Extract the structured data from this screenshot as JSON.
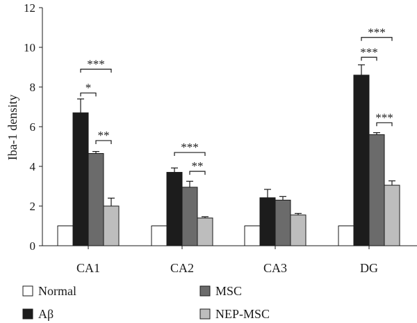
{
  "chart_data": {
    "type": "bar",
    "title": "",
    "xlabel": "",
    "ylabel": "Iba-1 density",
    "ylim": [
      0,
      12
    ],
    "yticks": [
      "0",
      "2",
      "4",
      "6",
      "8",
      "10",
      "12"
    ],
    "categories": [
      "CA1",
      "CA2",
      "CA3",
      "DG"
    ],
    "series": [
      {
        "name": "Normal",
        "color": "#ffffff",
        "values": [
          1.0,
          1.0,
          1.0,
          1.0
        ],
        "errors": [
          0.03,
          0.03,
          0.02,
          0.02
        ]
      },
      {
        "name": "Aβ",
        "color": "#1c1c1c",
        "values": [
          6.7,
          3.7,
          2.42,
          8.6
        ],
        "errors": [
          0.7,
          0.22,
          0.42,
          0.52
        ]
      },
      {
        "name": "MSC",
        "color": "#6b6b6b",
        "values": [
          4.65,
          2.95,
          2.3,
          5.6
        ],
        "errors": [
          0.1,
          0.3,
          0.18,
          0.1
        ]
      },
      {
        "name": "NEP-MSC",
        "color": "#bdbdbd",
        "values": [
          2.0,
          1.4,
          1.55,
          3.05
        ],
        "errors": [
          0.4,
          0.06,
          0.08,
          0.22
        ]
      }
    ],
    "significance": [
      {
        "category": "CA1",
        "from": 1,
        "to": 3,
        "label": "***",
        "y": 8.9
      },
      {
        "category": "CA1",
        "from": 1,
        "to": 2,
        "label": "*",
        "y": 7.7
      },
      {
        "category": "CA1",
        "from": 2,
        "to": 3,
        "label": "**",
        "y": 5.3
      },
      {
        "category": "CA2",
        "from": 1,
        "to": 3,
        "label": "***",
        "y": 4.7
      },
      {
        "category": "CA2",
        "from": 2,
        "to": 3,
        "label": "**",
        "y": 3.75
      },
      {
        "category": "DG",
        "from": 1,
        "to": 3,
        "label": "***",
        "y": 10.5
      },
      {
        "category": "DG",
        "from": 1,
        "to": 2,
        "label": "***",
        "y": 9.5
      },
      {
        "category": "DG",
        "from": 2,
        "to": 3,
        "label": "***",
        "y": 6.2
      }
    ],
    "legend": {
      "placement": "bottom",
      "items": [
        {
          "name": "Normal",
          "color": "#ffffff"
        },
        {
          "name": "MSC",
          "color": "#6b6b6b"
        },
        {
          "name": "Aβ",
          "color": "#1c1c1c"
        },
        {
          "name": "NEP-MSC",
          "color": "#bdbdbd"
        }
      ]
    },
    "grid": false
  }
}
